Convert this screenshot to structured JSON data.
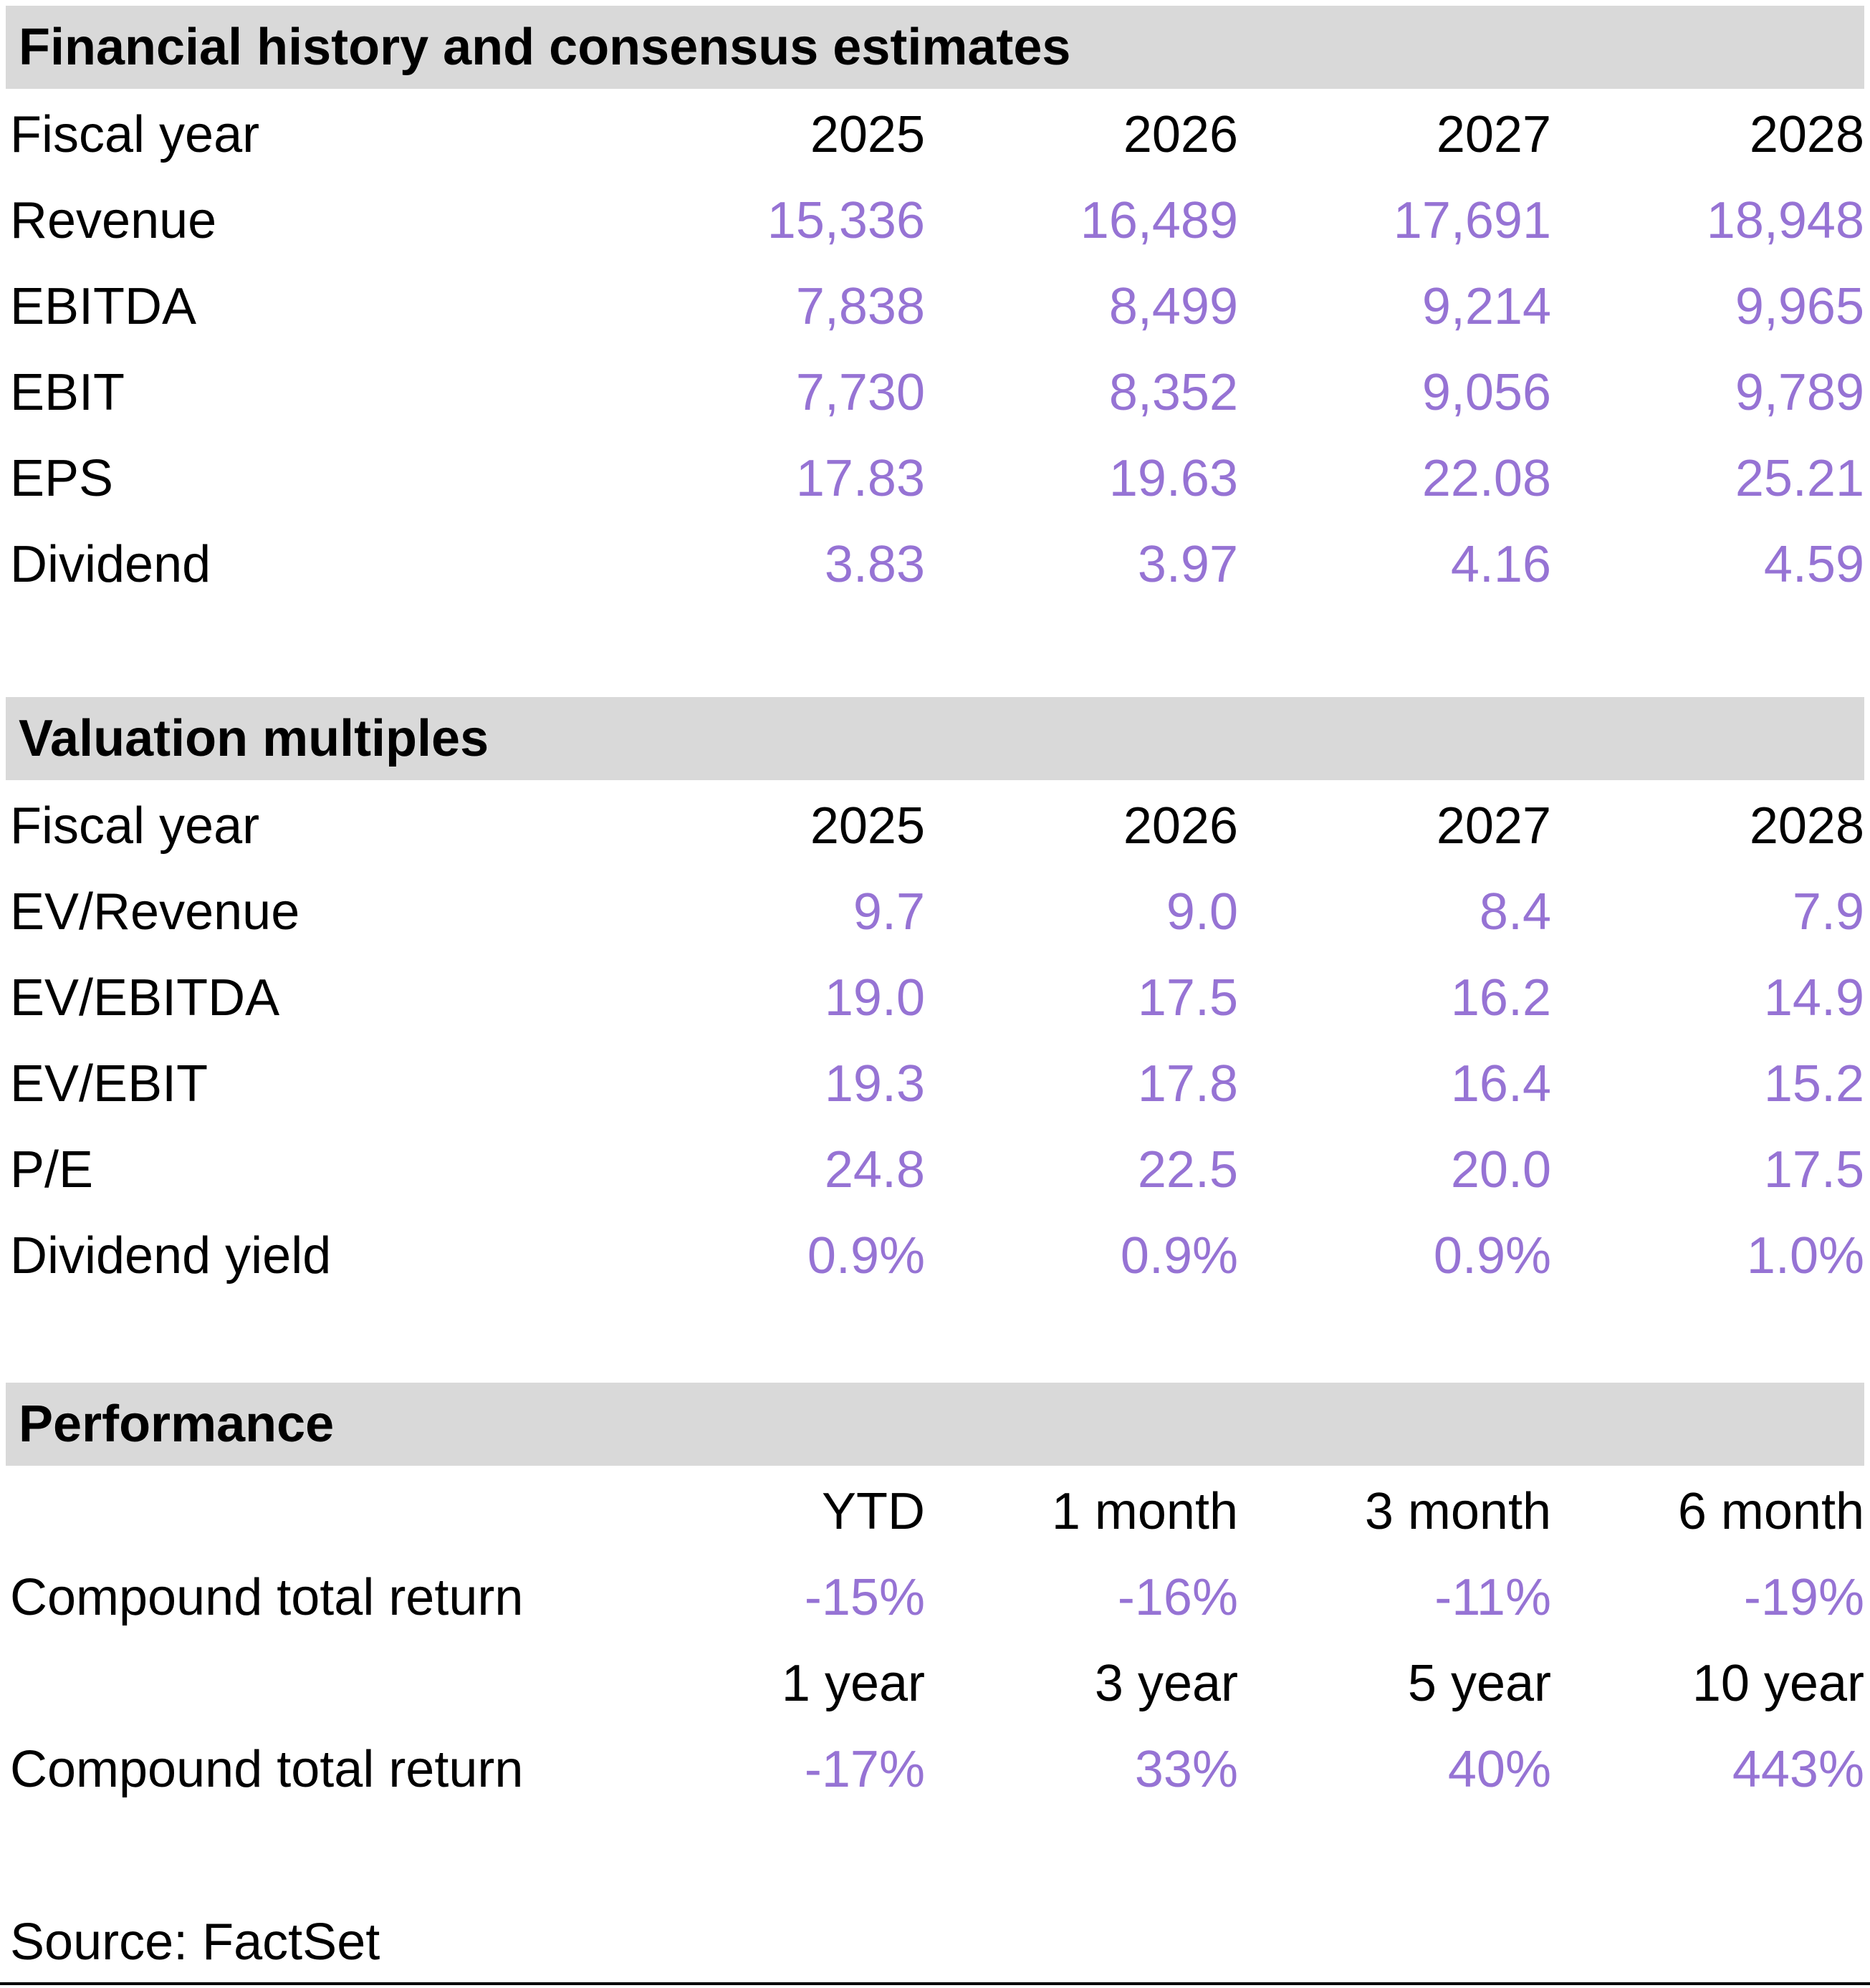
{
  "colors": {
    "accent_value_text": "#9673D4",
    "section_header_bg": "#D9D9D9",
    "body_text": "#000000",
    "bottom_rule": "#000000"
  },
  "sections": [
    {
      "title": "Financial history and consensus estimates",
      "fiscal": {
        "label": "Fiscal year",
        "cols": [
          "2025",
          "2026",
          "2027",
          "2028"
        ]
      },
      "rows": [
        {
          "label": "Revenue",
          "values": [
            "15,336",
            "16,489",
            "17,691",
            "18,948"
          ]
        },
        {
          "label": "EBITDA",
          "values": [
            "7,838",
            "8,499",
            "9,214",
            "9,965"
          ]
        },
        {
          "label": "EBIT",
          "values": [
            "7,730",
            "8,352",
            "9,056",
            "9,789"
          ]
        },
        {
          "label": "EPS",
          "values": [
            "17.83",
            "19.63",
            "22.08",
            "25.21"
          ]
        },
        {
          "label": "Dividend",
          "values": [
            "3.83",
            "3.97",
            "4.16",
            "4.59"
          ]
        }
      ]
    },
    {
      "title": "Valuation multiples",
      "fiscal": {
        "label": "Fiscal year",
        "cols": [
          "2025",
          "2026",
          "2027",
          "2028"
        ]
      },
      "rows": [
        {
          "label": "EV/Revenue",
          "values": [
            "9.7",
            "9.0",
            "8.4",
            "7.9"
          ]
        },
        {
          "label": "EV/EBITDA",
          "values": [
            "19.0",
            "17.5",
            "16.2",
            "14.9"
          ]
        },
        {
          "label": "EV/EBIT",
          "values": [
            "19.3",
            "17.8",
            "16.4",
            "15.2"
          ]
        },
        {
          "label": "P/E",
          "values": [
            "24.8",
            "22.5",
            "20.0",
            "17.5"
          ]
        },
        {
          "label": "Dividend yield",
          "values": [
            "0.9%",
            "0.9%",
            "0.9%",
            "1.0%"
          ]
        }
      ]
    },
    {
      "title": "Performance",
      "groups": [
        {
          "cols": [
            "YTD",
            "1 month",
            "3 month",
            "6 month"
          ],
          "row": {
            "label": "Compound total return",
            "values": [
              "-15%",
              "-16%",
              "-11%",
              "-19%"
            ]
          }
        },
        {
          "cols": [
            "1 year",
            "3 year",
            "5 year",
            "10 year"
          ],
          "row": {
            "label": "Compound total return",
            "values": [
              "-17%",
              "33%",
              "40%",
              "443%"
            ]
          }
        }
      ]
    }
  ],
  "source": "Source: FactSet"
}
